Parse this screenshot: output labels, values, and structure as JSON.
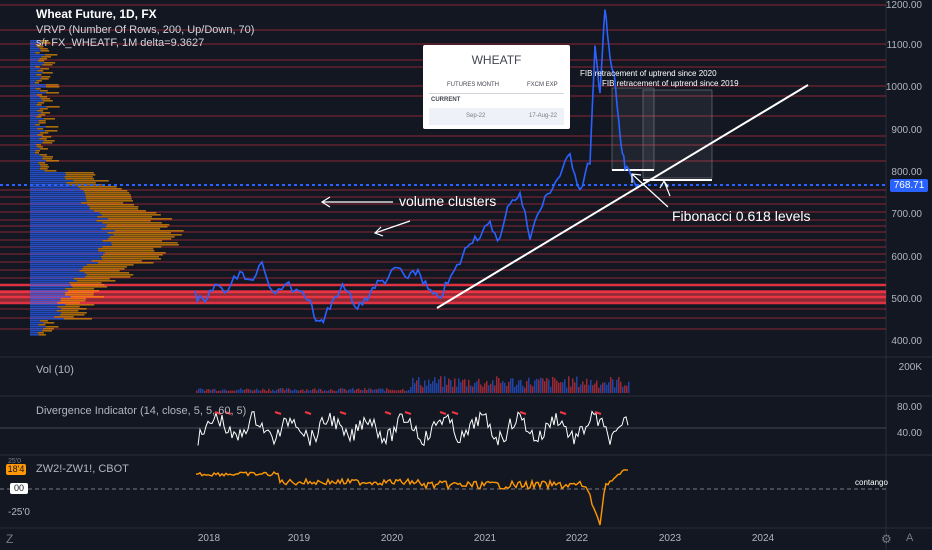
{
  "header": {
    "symbol_line": "Wheat Future, 1D, FX",
    "vrvp_line": "VRVP (Number Of Rows, 200, Up/Down, 70)",
    "sr_line": "s/r FX_WHEATF, 1M delta=9.3627"
  },
  "price_axis": {
    "ticks": [
      "1200.00",
      "1100.00",
      "1000.00",
      "900.00",
      "800.00",
      "700.00",
      "600.00",
      "500.00",
      "400.00"
    ],
    "current_price": "768.71"
  },
  "info_card": {
    "title": "WHEATF",
    "col1_header": "FUTURES MONTH",
    "col2_header": "FXCM EXP",
    "section_label": "CURRENT",
    "col1_value": "Sep-22",
    "col2_value": "17-Aug-22"
  },
  "annotations": {
    "volume_clusters": "volume clusters",
    "fib_levels": "Fibonacci 0.618 levels",
    "fib_2020": "FIB retracement of uptrend since 2020",
    "fib_2019": "FIB retracement of uptrend since 2019"
  },
  "volume_panel": {
    "label": "Vol (10)",
    "tick": "200K"
  },
  "divergence_panel": {
    "label": "Divergence Indicator (14, close, 5, 5, 60, 5)",
    "ticks": [
      "80.00",
      "40.00"
    ]
  },
  "spread_panel": {
    "label": "ZW2!-ZW1!, CBOT",
    "left_ticks": [
      "25'0",
      "18'4",
      "00",
      "-25'0"
    ],
    "contango_label": "contango"
  },
  "time_axis": {
    "ticks": [
      "2018",
      "2019",
      "2020",
      "2021",
      "2022",
      "2023",
      "2024"
    ]
  },
  "icons": [
    "logo-z-icon",
    "settings-icon",
    "auto-scale-icon"
  ],
  "colors": {
    "background": "#131722",
    "price_line": "#2962ff",
    "support_lines": "#f23645",
    "spread_line": "#ff9800",
    "divergence_line": "#ffffff"
  }
}
